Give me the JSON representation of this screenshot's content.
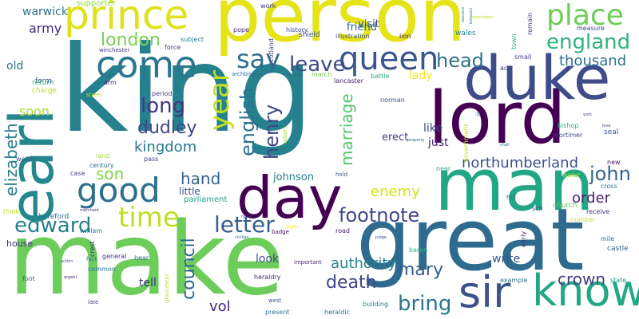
{
  "words": [
    {
      "text": "king",
      "color": "#26818e",
      "rotate": false
    },
    {
      "text": "make",
      "color": "#6ccd5a",
      "rotate": false
    },
    {
      "text": "person",
      "color": "#e4e419",
      "rotate": false
    },
    {
      "text": "great",
      "color": "#2f6b8e",
      "rotate": false
    },
    {
      "text": "earl",
      "color": "#24878e",
      "rotate": true
    },
    {
      "text": "man",
      "color": "#22a785",
      "rotate": false
    },
    {
      "text": "lord",
      "color": "#440154",
      "rotate": false
    },
    {
      "text": "duke",
      "color": "#3e4c8a",
      "rotate": false
    },
    {
      "text": "day",
      "color": "#440154",
      "rotate": false
    },
    {
      "text": "know",
      "color": "#22a884",
      "rotate": false
    },
    {
      "text": "sir",
      "color": "#3b528b",
      "rotate": false
    },
    {
      "text": "prince",
      "color": "#dde318",
      "rotate": false
    },
    {
      "text": "come",
      "color": "#2a778e",
      "rotate": false
    },
    {
      "text": "good",
      "color": "#2d708e",
      "rotate": false
    },
    {
      "text": "queen",
      "color": "#39568c",
      "rotate": false
    },
    {
      "text": "place",
      "color": "#6ece58",
      "rotate": false
    },
    {
      "text": "time",
      "color": "#bddf26",
      "rotate": false
    },
    {
      "text": "year",
      "color": "#c0df25",
      "rotate": true
    },
    {
      "text": "england",
      "color": "#2eb37c",
      "rotate": false
    },
    {
      "text": "say",
      "color": "#2e6e8e",
      "rotate": false
    },
    {
      "text": "leave",
      "color": "#3e4a89",
      "rotate": false
    },
    {
      "text": "head",
      "color": "#2d718e",
      "rotate": false
    },
    {
      "text": "edward",
      "color": "#26828e",
      "rotate": false
    },
    {
      "text": "letter",
      "color": "#355f8d",
      "rotate": false
    },
    {
      "text": "footnote",
      "color": "#3f4889",
      "rotate": false
    },
    {
      "text": "bring",
      "color": "#2a768e",
      "rotate": false
    },
    {
      "text": "london",
      "color": "#7ad151",
      "rotate": false
    },
    {
      "text": "long",
      "color": "#453781",
      "rotate": false
    },
    {
      "text": "dudley",
      "color": "#3f4788",
      "rotate": false
    },
    {
      "text": "english",
      "color": "#2c728e",
      "rotate": true
    },
    {
      "text": "henry",
      "color": "#404688",
      "rotate": true
    },
    {
      "text": "marriage",
      "color": "#52c569",
      "rotate": true
    },
    {
      "text": "mary",
      "color": "#355e8d",
      "rotate": false
    },
    {
      "text": "death",
      "color": "#404588",
      "rotate": false
    },
    {
      "text": "council",
      "color": "#31688e",
      "rotate": true
    },
    {
      "text": "crown",
      "color": "#433e85",
      "rotate": false
    },
    {
      "text": "john",
      "color": "#33638d",
      "rotate": false
    },
    {
      "text": "northumberland",
      "color": "#3b528b",
      "rotate": false
    },
    {
      "text": "thousand",
      "color": "#2d708e",
      "rotate": false
    },
    {
      "text": "kingdom",
      "color": "#2a768e",
      "rotate": false
    },
    {
      "text": "elizabeth",
      "color": "#287c8e",
      "rotate": true
    },
    {
      "text": "hand",
      "color": "#33638d",
      "rotate": false
    },
    {
      "text": "son",
      "color": "#84d44b",
      "rotate": false
    },
    {
      "text": "enemy",
      "color": "#d2e21b",
      "rotate": false
    },
    {
      "text": "authority",
      "color": "#25848e",
      "rotate": false
    },
    {
      "text": "order",
      "color": "#482173",
      "rotate": false
    },
    {
      "text": "vol",
      "color": "#482475",
      "rotate": false
    },
    {
      "text": "army",
      "color": "#482878",
      "rotate": false
    },
    {
      "text": "warwick",
      "color": "#2c718e",
      "rotate": false
    },
    {
      "text": "soon",
      "color": "#a8db34",
      "rotate": false
    },
    {
      "text": "just",
      "color": "#482475",
      "rotate": false
    },
    {
      "text": "like",
      "color": "#3e4989",
      "rotate": false
    },
    {
      "text": "johnson",
      "color": "#277f8e",
      "rotate": false
    },
    {
      "text": "write",
      "color": "#39568c",
      "rotate": false
    },
    {
      "text": "look",
      "color": "#3d4d8a",
      "rotate": false
    },
    {
      "text": "tell",
      "color": "#46327e",
      "rotate": false
    },
    {
      "text": "little",
      "color": "#3a548c",
      "rotate": false
    },
    {
      "text": "visit",
      "color": "#3b518b",
      "rotate": false
    },
    {
      "text": "friend",
      "color": "#31678e",
      "rotate": false
    },
    {
      "text": "lady",
      "color": "#f1e51d",
      "rotate": false
    },
    {
      "text": "old",
      "color": "#2c738e",
      "rotate": false
    },
    {
      "text": "erect",
      "color": "#453882",
      "rotate": false
    },
    {
      "text": "house",
      "color": "#46307e",
      "rotate": false
    },
    {
      "text": "supporter",
      "color": "#95d840",
      "rotate": false
    },
    {
      "text": "scotland",
      "color": "#423f85",
      "rotate": true
    },
    {
      "text": "form",
      "color": "#3e4a89",
      "rotate": false
    },
    {
      "text": "charge",
      "color": "#c5e021",
      "rotate": false
    },
    {
      "text": "return",
      "color": "#2fb47c",
      "rotate": false
    },
    {
      "text": "parliament",
      "color": "#1fa088",
      "rotate": false
    },
    {
      "text": "hereford",
      "color": "#2d718e",
      "rotate": false
    },
    {
      "text": "william",
      "color": "#2a788e",
      "rotate": false
    },
    {
      "text": "crest",
      "color": "#482677",
      "rotate": true
    },
    {
      "text": "general",
      "color": "#463480",
      "rotate": false
    },
    {
      "text": "bear",
      "color": "#2c728e",
      "rotate": false
    },
    {
      "text": "common",
      "color": "#2a778e",
      "rotate": false
    },
    {
      "text": "heraldry",
      "color": "#482576",
      "rotate": false
    },
    {
      "text": "road",
      "color": "#481c6e",
      "rotate": false
    },
    {
      "text": "baron",
      "color": "#2fb47c",
      "rotate": false
    },
    {
      "text": "building",
      "color": "#29798e",
      "rotate": false
    },
    {
      "text": "present",
      "color": "#2c718e",
      "rotate": false
    },
    {
      "text": "heraldic",
      "color": "#2e6d8e",
      "rotate": false
    },
    {
      "text": "gloucester",
      "color": "#b5de2b",
      "rotate": true
    },
    {
      "text": "foot",
      "color": "#306a8e",
      "rotate": false
    },
    {
      "text": "think",
      "color": "#c2df23",
      "rotate": false
    },
    {
      "text": "welsh",
      "color": "#34608d",
      "rotate": false
    },
    {
      "text": "case",
      "color": "#414487",
      "rotate": false
    },
    {
      "text": "century",
      "color": "#2e6f8e",
      "rotate": false
    },
    {
      "text": "pass",
      "color": "#433d84",
      "rotate": false
    },
    {
      "text": "land",
      "color": "#9dd93b",
      "rotate": false
    },
    {
      "text": "subject",
      "color": "#297a8e",
      "rotate": false
    },
    {
      "text": "force",
      "color": "#453581",
      "rotate": false
    },
    {
      "text": "pope",
      "color": "#482878",
      "rotate": false
    },
    {
      "text": "work",
      "color": "#443a83",
      "rotate": false
    },
    {
      "text": "history",
      "color": "#404588",
      "rotate": false
    },
    {
      "text": "shield",
      "color": "#3c4f8a",
      "rotate": false
    },
    {
      "text": "illustration",
      "color": "#3b528b",
      "rotate": false
    },
    {
      "text": "lion",
      "color": "#482374",
      "rotate": false
    },
    {
      "text": "wales",
      "color": "#24868e",
      "rotate": false
    },
    {
      "text": "measure",
      "color": "#3f4788",
      "rotate": false
    },
    {
      "text": "receive",
      "color": "#46337f",
      "rotate": false
    },
    {
      "text": "small",
      "color": "#414287",
      "rotate": false
    },
    {
      "text": "act",
      "color": "#443983",
      "rotate": false
    },
    {
      "text": "lancaster",
      "color": "#482172",
      "rotate": false
    },
    {
      "text": "norman",
      "color": "#3c4f8a",
      "rotate": false
    },
    {
      "text": "robert",
      "color": "#a0da39",
      "rotate": true
    },
    {
      "text": "near",
      "color": "#27ad81",
      "rotate": false
    },
    {
      "text": "mortimer",
      "color": "#3e4989",
      "rotate": false
    },
    {
      "text": "bishop",
      "color": "#2ab07f",
      "rotate": false
    },
    {
      "text": "church",
      "color": "#63cb5f",
      "rotate": false
    },
    {
      "text": "seal",
      "color": "#3b528b",
      "rotate": false
    },
    {
      "text": "new",
      "color": "#482071",
      "rotate": false
    },
    {
      "text": "water",
      "color": "#8bd646",
      "rotate": false
    },
    {
      "text": "cross",
      "color": "#297a8e",
      "rotate": false
    },
    {
      "text": "number",
      "color": "#cae11f",
      "rotate": false
    },
    {
      "text": "early",
      "color": "#46307e",
      "rotate": true
    },
    {
      "text": "mile",
      "color": "#2e6f8e",
      "rotate": false
    },
    {
      "text": "castle",
      "color": "#34618d",
      "rotate": false
    },
    {
      "text": "state",
      "color": "#1e9c89",
      "rotate": false
    },
    {
      "text": "example",
      "color": "#2e6e8e",
      "rotate": false
    },
    {
      "text": "arm",
      "color": "#482979",
      "rotate": false
    },
    {
      "text": "period",
      "color": "#443b84",
      "rotate": false
    },
    {
      "text": "winchester",
      "color": "#46327e",
      "rotate": false
    },
    {
      "text": "archbishop",
      "color": "#2c718e",
      "rotate": false
    },
    {
      "text": "march",
      "color": "#75d054",
      "rotate": false
    },
    {
      "text": "battle",
      "color": "#2ab07f",
      "rotate": false
    },
    {
      "text": "government",
      "color": "#d0e11c",
      "rotate": true
    },
    {
      "text": "town",
      "color": "#29af7f",
      "rotate": true
    },
    {
      "text": "remain",
      "color": "#424086",
      "rotate": true
    },
    {
      "text": "important",
      "color": "#482576",
      "rotate": false
    },
    {
      "text": "sch",
      "color": "#3b528b",
      "rotate": false
    },
    {
      "text": "hill",
      "color": "#2d708e",
      "rotate": false
    },
    {
      "text": "street",
      "color": "#bddf26",
      "rotate": false
    },
    {
      "text": "late",
      "color": "#433e85",
      "rotate": false
    },
    {
      "text": "fact",
      "color": "#2c728e",
      "rotate": false
    },
    {
      "text": "badge",
      "color": "#460b5e",
      "rotate": false
    },
    {
      "text": "west",
      "color": "#3b528b",
      "rotate": false
    },
    {
      "text": "hold",
      "color": "#38588c",
      "rotate": false
    },
    {
      "text": "thomas",
      "color": "#3b528b",
      "rotate": false
    },
    {
      "text": "iii",
      "color": "#297b8e",
      "rotate": false
    },
    {
      "text": "property",
      "color": "#32658e",
      "rotate": false
    },
    {
      "text": "york",
      "color": "#3f4889",
      "rotate": false
    },
    {
      "text": "shall",
      "color": "#2c738e",
      "rotate": false
    },
    {
      "text": "love",
      "color": "#443b84",
      "rotate": false
    },
    {
      "text": "roger",
      "color": "#fde725",
      "rotate": false
    },
    {
      "text": "kensington",
      "color": "#c8e020",
      "rotate": false
    },
    {
      "text": "abolished",
      "color": "#2d718e",
      "rotate": true
    },
    {
      "text": "beheaded",
      "color": "#2a768e",
      "rotate": true
    },
    {
      "text": "merchant",
      "color": "#46337f",
      "rotate": false
    },
    {
      "text": "civilian",
      "color": "#2d718e",
      "rotate": false
    },
    {
      "text": "argent",
      "color": "#482878",
      "rotate": false
    },
    {
      "text": "judge",
      "color": "#3b518b",
      "rotate": false
    },
    {
      "text": "action",
      "color": "#3e4a89",
      "rotate": false
    },
    {
      "text": "royal",
      "color": "#46337f",
      "rotate": false
    }
  ]
}
